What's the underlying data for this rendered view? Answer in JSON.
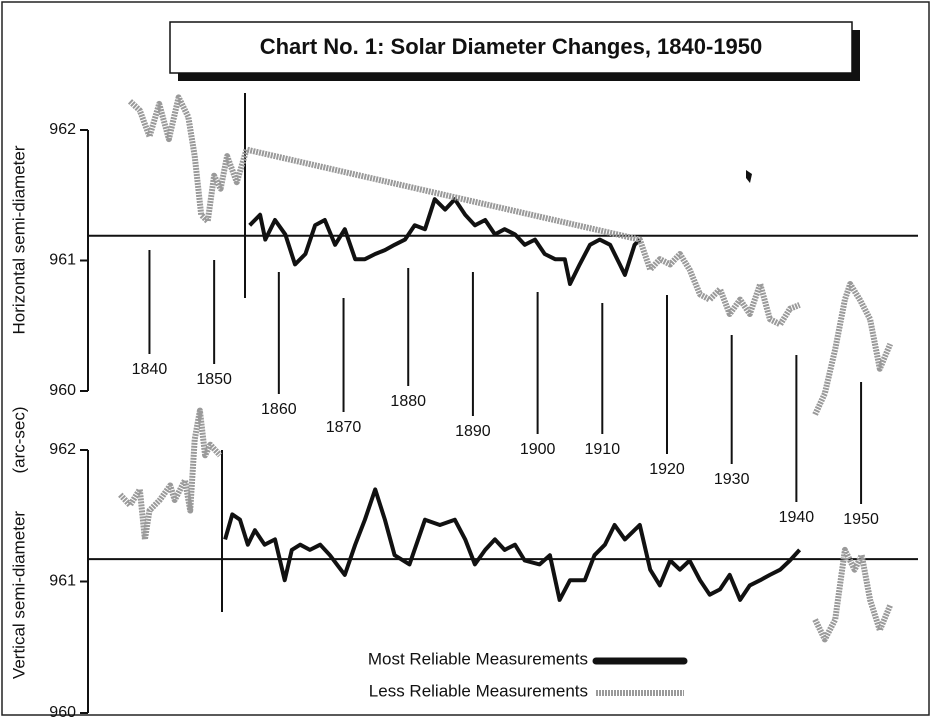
{
  "title": "Chart No. 1:  Solar Diameter Changes, 1840-1950",
  "unit_label": "(arc-sec)",
  "chart_data": [
    {
      "type": "line",
      "ylabel": "Horizontal semi-diameter",
      "xlim": [
        1830.5,
        1958.8
      ],
      "ylim": [
        960,
        962
      ],
      "yticks": [
        960,
        961,
        962
      ],
      "xticks": [
        1840,
        1850,
        1860,
        1870,
        1880,
        1890,
        1900,
        1910,
        1920,
        1930,
        1940,
        1950
      ],
      "reference": 961.19,
      "series": [
        {
          "color": "#111111",
          "style": "solid",
          "x": [
            1855.5,
            1857.1,
            1857.9,
            1859.4,
            1861,
            1862.5,
            1864.1,
            1865.6,
            1867.1,
            1868.7,
            1870.2,
            1871.8,
            1873.3,
            1874.9,
            1876.4,
            1877.9,
            1879.5,
            1881,
            1882.6,
            1884.1,
            1885.7,
            1887.2,
            1888.8,
            1890.3,
            1891.9,
            1893.4,
            1894.9,
            1896.5,
            1898,
            1899.6,
            1901.1,
            1902.7,
            1904.2,
            1905,
            1906.5,
            1908.1,
            1909.6,
            1911.2,
            1912.7,
            1913.5,
            1915,
            1915.8
          ],
          "values": [
            961.27,
            961.35,
            961.16,
            961.31,
            961.2,
            960.97,
            961.05,
            961.27,
            961.31,
            961.12,
            961.24,
            961.01,
            961.01,
            961.05,
            961.08,
            961.12,
            961.16,
            961.27,
            961.24,
            961.47,
            961.39,
            961.47,
            961.35,
            961.27,
            961.31,
            961.2,
            961.24,
            961.2,
            961.12,
            961.16,
            961.05,
            961.01,
            961.01,
            960.82,
            960.97,
            961.12,
            961.16,
            961.12,
            960.97,
            960.89,
            961.12,
            961.16
          ]
        },
        {
          "color": "#9a9a9a",
          "style": "speckled",
          "x": [
            1837,
            1838.5,
            1840,
            1841.5,
            1843,
            1844.5,
            1846,
            1847,
            1848,
            1849,
            1850,
            1851,
            1852,
            1853.5,
            1855,
            1915.8,
            1917.4,
            1918.9,
            1920.5,
            1922,
            1923.5,
            1925.1,
            1926.6,
            1928.2,
            1929.7,
            1931.3,
            1932.8,
            1934.4,
            1935.9,
            1937.5,
            1939,
            1940.5,
            1941.7,
            1942.9,
            1944.4,
            1946,
            1947.5,
            1948.3,
            1949.8,
            1951.4,
            1952.9,
            1954.5
          ],
          "values": [
            962.22,
            962.15,
            961.95,
            962.2,
            961.93,
            962.25,
            962.1,
            961.8,
            961.35,
            961.3,
            961.65,
            961.55,
            961.8,
            961.6,
            961.85,
            961.16,
            960.93,
            961.01,
            960.97,
            961.05,
            960.93,
            960.74,
            960.7,
            960.78,
            960.59,
            960.7,
            960.59,
            960.82,
            960.55,
            960.51,
            960.63,
            960.66,
            null,
            959.82,
            959.98,
            960.32,
            960.7,
            960.82,
            960.7,
            960.55,
            960.17,
            960.36
          ]
        }
      ]
    },
    {
      "type": "line",
      "ylabel": "Vertical semi-diameter",
      "xlim": [
        1830.5,
        1958.8
      ],
      "ylim": [
        960,
        962
      ],
      "yticks": [
        960,
        961,
        962
      ],
      "reference": 961.17,
      "series": [
        {
          "name": "Most Reliable Measurements",
          "color": "#111111",
          "style": "solid",
          "x": [
            1851.7,
            1852.8,
            1854,
            1855.2,
            1856.3,
            1857.8,
            1859.4,
            1860.9,
            1862,
            1863.3,
            1864.8,
            1866.4,
            1867.9,
            1870.2,
            1871.8,
            1873.3,
            1874.9,
            1876.4,
            1877.9,
            1880.2,
            1882.6,
            1884.9,
            1887.2,
            1888.8,
            1890.3,
            1891.9,
            1893.4,
            1894.9,
            1896.5,
            1898,
            1900.3,
            1901.9,
            1903.4,
            1905,
            1907.3,
            1908.8,
            1910.4,
            1911.9,
            1913.5,
            1915.8,
            1917.4,
            1918.9,
            1920.5,
            1922,
            1923.5,
            1925.1,
            1926.6,
            1928.2,
            1929.7,
            1931.3,
            1932.8,
            1934.4,
            1935.9,
            1937.5,
            1939,
            1940.5
          ],
          "values": [
            961.32,
            961.51,
            961.47,
            961.28,
            961.39,
            961.28,
            961.32,
            961.01,
            961.24,
            961.28,
            961.24,
            961.28,
            961.2,
            961.05,
            961.28,
            961.47,
            961.7,
            961.47,
            961.2,
            961.13,
            961.47,
            961.43,
            961.47,
            961.32,
            961.13,
            961.24,
            961.32,
            961.24,
            961.28,
            961.16,
            961.13,
            961.2,
            960.86,
            961.01,
            961.01,
            961.2,
            961.28,
            961.43,
            961.32,
            961.43,
            961.09,
            960.97,
            961.16,
            961.09,
            961.16,
            961.01,
            960.9,
            960.94,
            961.05,
            960.86,
            960.97,
            961.01,
            961.05,
            961.09,
            961.16,
            961.24
          ]
        },
        {
          "name": "Less Reliable Measurements",
          "color": "#9a9a9a",
          "style": "speckled",
          "x": [
            1835.5,
            1837,
            1838.5,
            1839.3,
            1840,
            1841.6,
            1843.2,
            1843.9,
            1845.5,
            1846.3,
            1847,
            1847.8,
            1848.6,
            1849.4,
            1850.9,
            1941.7,
            1942.9,
            1944.4,
            1946,
            1947.5,
            1949,
            1950.1,
            1951.4,
            1952.9,
            1954.5
          ],
          "values": [
            961.66,
            961.58,
            961.7,
            961.32,
            961.54,
            961.62,
            961.73,
            961.62,
            961.77,
            961.54,
            962.08,
            962.3,
            961.96,
            962.04,
            961.96,
            null,
            960.71,
            960.56,
            960.71,
            961.24,
            961.09,
            961.2,
            960.86,
            960.63,
            960.82
          ]
        }
      ]
    }
  ]
}
